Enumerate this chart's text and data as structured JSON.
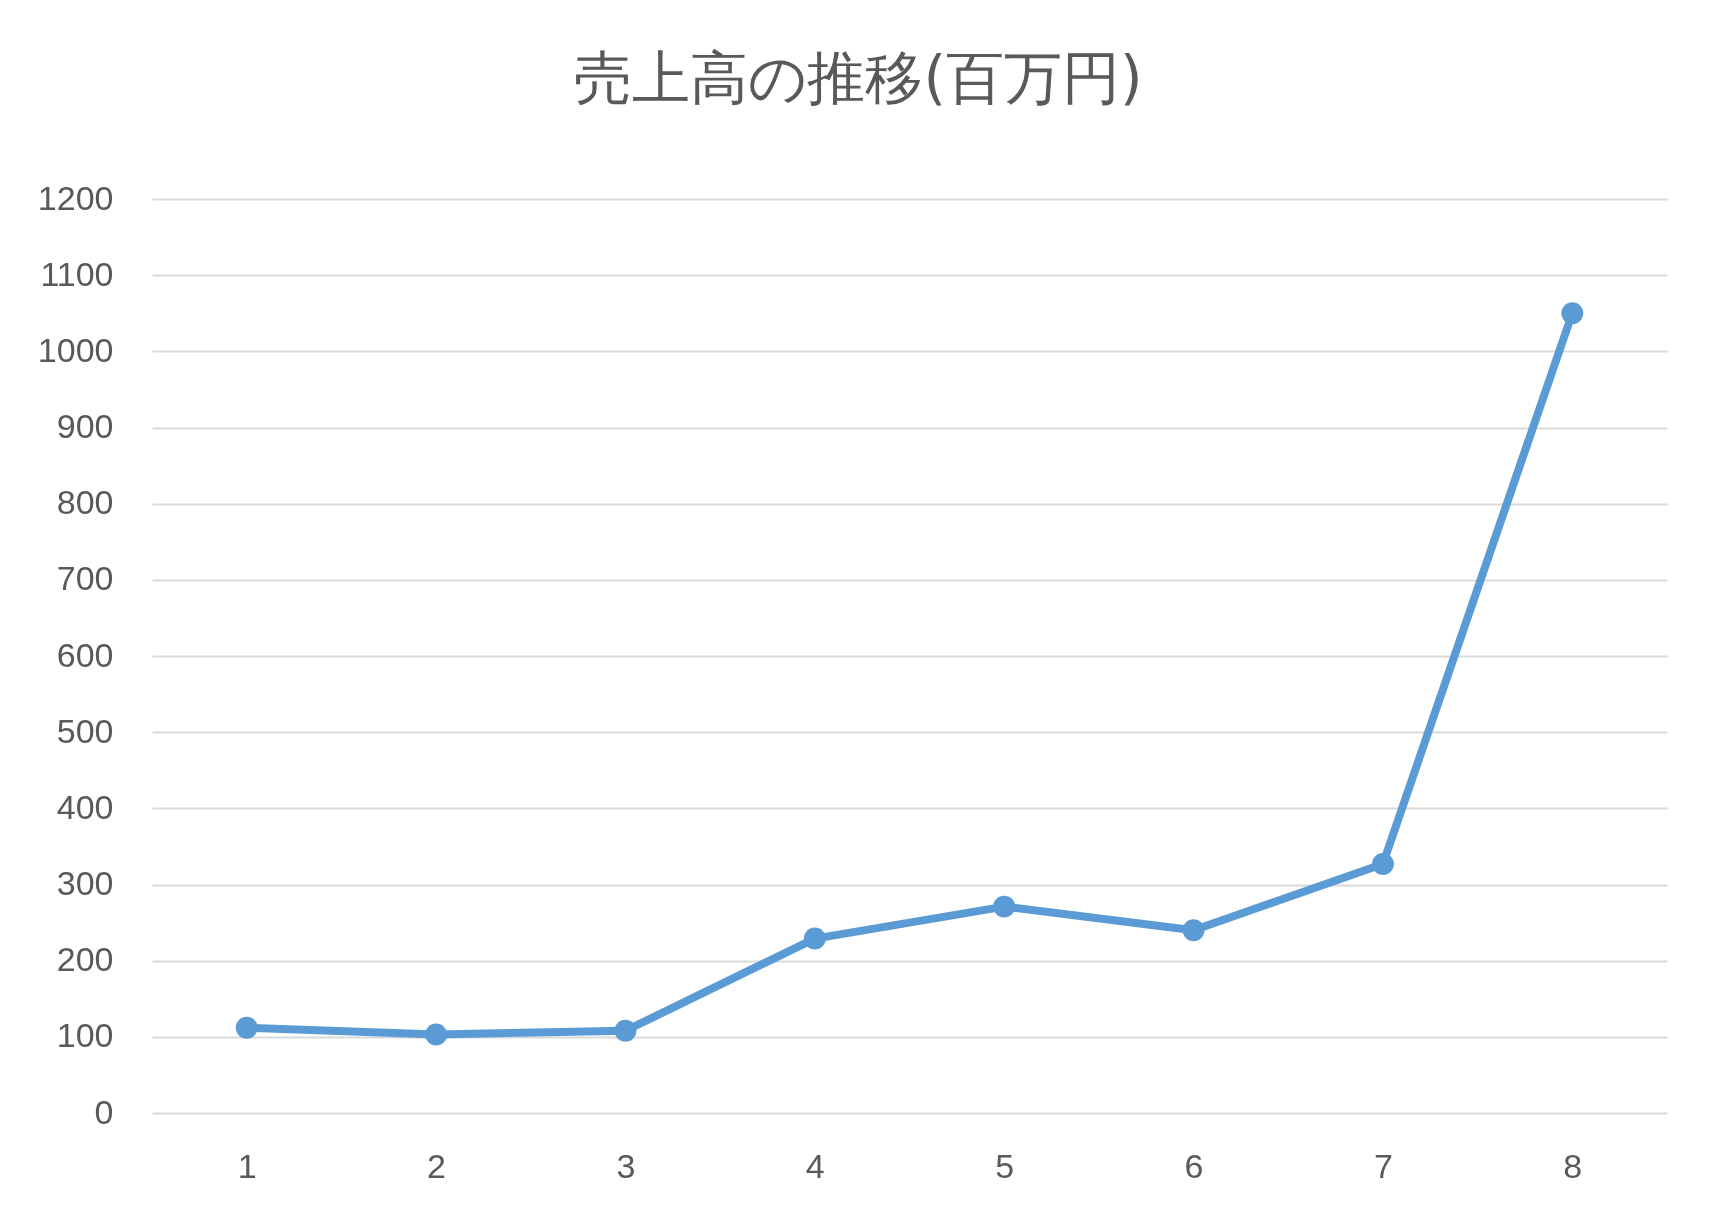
{
  "chart_data": {
    "type": "line",
    "title": "売上高の推移(百万円)",
    "categories": [
      "1",
      "2",
      "3",
      "4",
      "5",
      "6",
      "7",
      "8"
    ],
    "series": [
      {
        "color": "#5b9bd5",
        "values": [
          112,
          103,
          108,
          229,
          271,
          240,
          327,
          1050
        ]
      }
    ],
    "ylim": [
      0,
      1200
    ],
    "yticks": [
      0,
      100,
      200,
      300,
      400,
      500,
      600,
      700,
      800,
      900,
      1000,
      1100,
      1200
    ],
    "grid": "y",
    "marker": "circle",
    "line_style": "solid"
  }
}
